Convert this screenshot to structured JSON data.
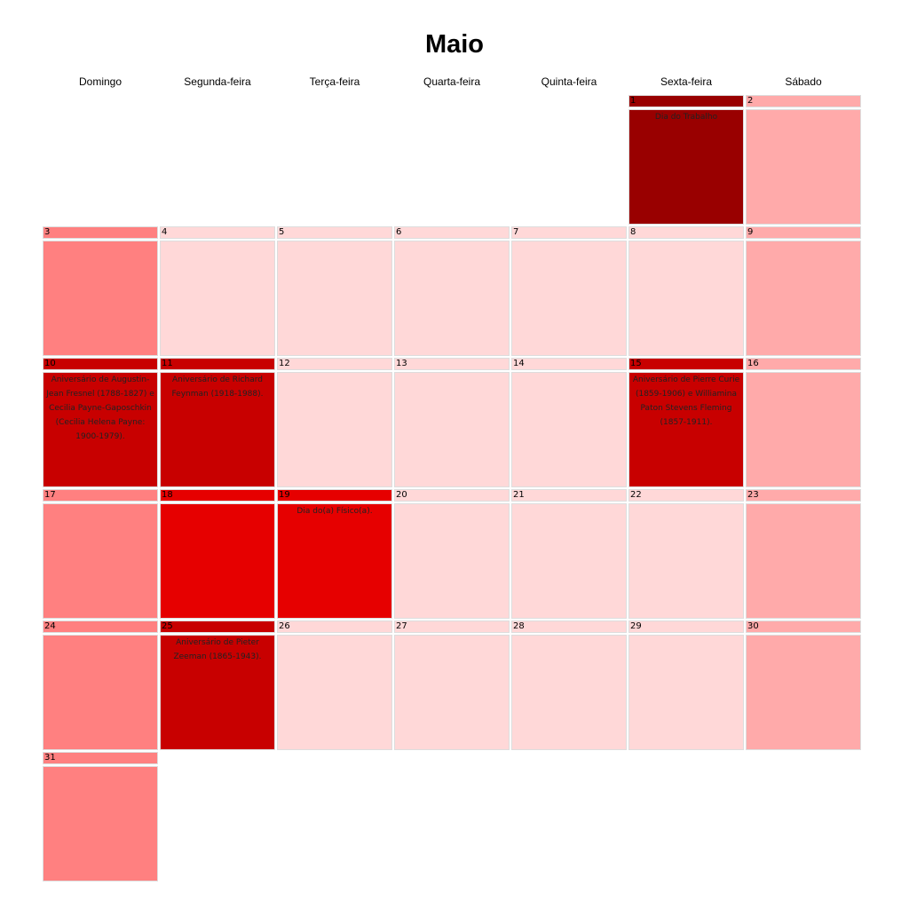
{
  "title": "Maio",
  "weekdays": [
    "Domingo",
    "Segunda-feira",
    "Terça-feira",
    "Quarta-feira",
    "Quinta-feira",
    "Sexta-feira",
    "Sábado"
  ],
  "colors": {
    "sunday": "#ff8080",
    "saturday": "#ffaaaa",
    "weekday": "#ffd8d8",
    "holiday": "#990000",
    "anniversary": "#c80000",
    "commemoration": "#e60000"
  },
  "first_weekday_index": 5,
  "days": [
    {
      "n": "1",
      "type": "holiday",
      "event": "Dia do Trabalho"
    },
    {
      "n": "2",
      "type": "saturday"
    },
    {
      "n": "3",
      "type": "sunday"
    },
    {
      "n": "4"
    },
    {
      "n": "5"
    },
    {
      "n": "6"
    },
    {
      "n": "7"
    },
    {
      "n": "8"
    },
    {
      "n": "9",
      "type": "saturday"
    },
    {
      "n": "10",
      "type": "anniversary",
      "event": "Aniversário de Augustin-Jean Fresnel (1788-1827) e Cecilia Payne-Gaposchkin (Cecilia Helena Payne: 1900-1979)."
    },
    {
      "n": "11",
      "type": "anniversary",
      "event": "Aniversário de Richard Feynman (1918-1988)."
    },
    {
      "n": "12"
    },
    {
      "n": "13"
    },
    {
      "n": "14"
    },
    {
      "n": "15",
      "type": "anniversary",
      "event": "Aniversário de Pierre Curie (1859-1906) e Williamina Paton Stevens Fleming (1857-1911)."
    },
    {
      "n": "16",
      "type": "saturday"
    },
    {
      "n": "17",
      "type": "sunday"
    },
    {
      "n": "18",
      "type": "commemoration"
    },
    {
      "n": "19",
      "type": "commemoration",
      "event": "Dia do(a) Físico(a)."
    },
    {
      "n": "20"
    },
    {
      "n": "21"
    },
    {
      "n": "22"
    },
    {
      "n": "23",
      "type": "saturday"
    },
    {
      "n": "24",
      "type": "sunday"
    },
    {
      "n": "25",
      "type": "anniversary",
      "event": "Aniversário de Pieter Zeeman (1865-1943)."
    },
    {
      "n": "26"
    },
    {
      "n": "27"
    },
    {
      "n": "28"
    },
    {
      "n": "29"
    },
    {
      "n": "30",
      "type": "saturday"
    },
    {
      "n": "31",
      "type": "sunday"
    }
  ]
}
